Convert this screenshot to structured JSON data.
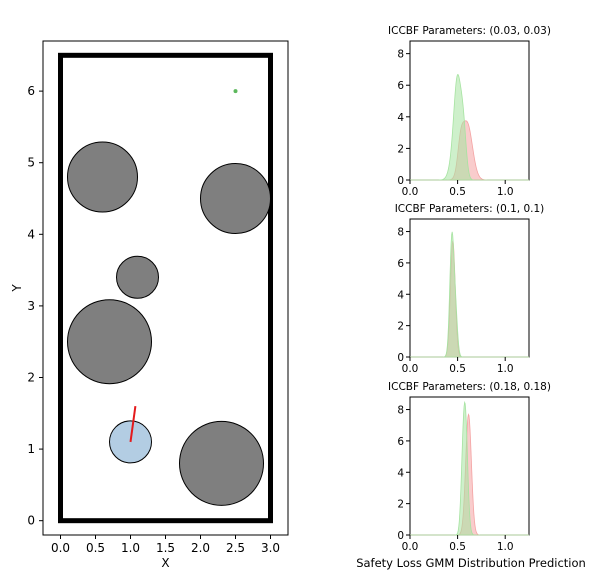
{
  "colors": {
    "obstacle": "#7f7f7f",
    "robot": "#b3cde3",
    "heading": "#e41a1c",
    "goal": "#5cb85c",
    "dist_red": "#f4a3a3",
    "dist_green": "#a6e3a1"
  },
  "chart_data": [
    {
      "type": "scatter",
      "title": "",
      "xlabel": "X",
      "ylabel": "Y",
      "xlim": [
        -0.25,
        3.25
      ],
      "ylim": [
        -0.2,
        6.7
      ],
      "xticks": [
        0.0,
        0.5,
        1.0,
        1.5,
        2.0,
        2.5,
        3.0
      ],
      "xtick_labels": [
        "0.0",
        "0.5",
        "1.0",
        "1.5",
        "2.0",
        "2.5",
        "3.0"
      ],
      "yticks": [
        0,
        1,
        2,
        3,
        4,
        5,
        6
      ],
      "ytick_labels": [
        "0",
        "1",
        "2",
        "3",
        "4",
        "5",
        "6"
      ],
      "boundary": {
        "x": [
          0,
          3
        ],
        "y": [
          0,
          6.5
        ]
      },
      "obstacles": [
        {
          "x": 0.6,
          "y": 4.8,
          "r": 0.5
        },
        {
          "x": 2.5,
          "y": 4.5,
          "r": 0.5
        },
        {
          "x": 1.1,
          "y": 3.4,
          "r": 0.3
        },
        {
          "x": 0.7,
          "y": 2.5,
          "r": 0.6
        },
        {
          "x": 2.3,
          "y": 0.8,
          "r": 0.6
        }
      ],
      "robot": {
        "x": 1.0,
        "y": 1.1,
        "r": 0.3
      },
      "heading_end": {
        "x": 1.07,
        "y": 1.6
      },
      "goal": {
        "x": 2.5,
        "y": 6.0
      }
    },
    {
      "type": "area",
      "title": "ICCBF Parameters: (0.03, 0.03)",
      "xlim": [
        0,
        1.25
      ],
      "ylim": [
        0,
        8.8
      ],
      "xticks": [
        0.0,
        0.5,
        1.0
      ],
      "xtick_labels": [
        "0.0",
        "0.5",
        "1.0"
      ],
      "yticks": [
        0,
        2,
        4,
        6,
        8
      ],
      "ytick_labels": [
        "0",
        "2",
        "4",
        "6",
        "8"
      ],
      "series": [
        {
          "name": "red",
          "components": [
            {
              "mu": 0.6,
              "sigma": 0.055,
              "peak": 3.6
            },
            {
              "mu": 0.53,
              "sigma": 0.03,
              "peak": 1.5
            }
          ]
        },
        {
          "name": "green",
          "components": [
            {
              "mu": 0.5,
              "sigma": 0.035,
              "peak": 4.8
            },
            {
              "mu": 0.56,
              "sigma": 0.03,
              "peak": 3.2
            },
            {
              "mu": 0.47,
              "sigma": 0.045,
              "peak": 1.8
            }
          ]
        }
      ]
    },
    {
      "type": "area",
      "title": "ICCBF Parameters: (0.1, 0.1)",
      "xlim": [
        0,
        1.25
      ],
      "ylim": [
        0,
        8.8
      ],
      "xticks": [
        0.0,
        0.5,
        1.0
      ],
      "xtick_labels": [
        "0.0",
        "0.5",
        "1.0"
      ],
      "yticks": [
        0,
        2,
        4,
        6,
        8
      ],
      "ytick_labels": [
        "0",
        "2",
        "4",
        "6",
        "8"
      ],
      "series": [
        {
          "name": "red",
          "components": [
            {
              "mu": 0.45,
              "sigma": 0.025,
              "peak": 7.4
            }
          ]
        },
        {
          "name": "green",
          "components": [
            {
              "mu": 0.44,
              "sigma": 0.022,
              "peak": 7.6
            },
            {
              "mu": 0.48,
              "sigma": 0.02,
              "peak": 2.5
            }
          ]
        }
      ]
    },
    {
      "type": "area",
      "title": "ICCBF Parameters: (0.18, 0.18)",
      "xlabel": "Safety Loss GMM Distribution Prediction",
      "xlim": [
        0,
        1.25
      ],
      "ylim": [
        0,
        8.8
      ],
      "xticks": [
        0.0,
        0.5,
        1.0
      ],
      "xtick_labels": [
        "0.0",
        "0.5",
        "1.0"
      ],
      "yticks": [
        0,
        2,
        4,
        6,
        8
      ],
      "ytick_labels": [
        "0",
        "2",
        "4",
        "6",
        "8"
      ],
      "series": [
        {
          "name": "red",
          "components": [
            {
              "mu": 0.615,
              "sigma": 0.03,
              "peak": 7.7
            }
          ]
        },
        {
          "name": "green",
          "components": [
            {
              "mu": 0.58,
              "sigma": 0.025,
              "peak": 7.7
            },
            {
              "mu": 0.55,
              "sigma": 0.02,
              "peak": 2.0
            }
          ]
        }
      ]
    }
  ]
}
